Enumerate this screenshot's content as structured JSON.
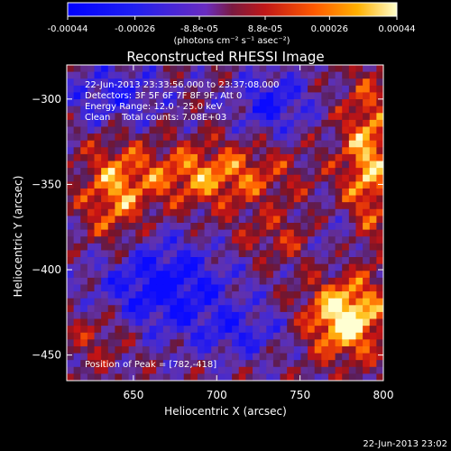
{
  "colorbar": {
    "tick_labels": [
      "-0.00044",
      "-0.00026",
      "-8.8e-05",
      "8.8e-05",
      "0.00026",
      "0.00044"
    ],
    "tick_values": [
      -0.00044,
      -0.00026,
      -8.8e-05,
      8.8e-05,
      0.00026,
      0.00044
    ],
    "range": [
      -0.00044,
      0.00044
    ],
    "units_label": "(photons cm⁻² s⁻¹ asec⁻²)"
  },
  "chart_data": {
    "type": "heatmap",
    "title": "Reconstructed RHESSI Image",
    "xlabel": "Heliocentric X (arcsec)",
    "ylabel": "Heliocentric Y (arcsec)",
    "xlim": [
      610,
      800
    ],
    "ylim": [
      -465,
      -280
    ],
    "x_ticks": [
      650,
      700,
      750,
      800
    ],
    "x_tick_labels": [
      "650",
      "700",
      "750",
      "800"
    ],
    "y_ticks": [
      -300,
      -350,
      -400,
      -450
    ],
    "y_tick_labels": [
      "−300",
      "−350",
      "−400",
      "−450"
    ],
    "annotations": [
      "22-Jun-2013 23:33:56.000 to 23:37:08.000",
      "Detectors: 3F 5F 6F 7F 8F 9F, Att 0",
      "Energy Range: 12.0 - 25.0 keV",
      "Clean    Total counts: 7.08E+03"
    ],
    "peak_label": "Position of Peak = [782,-418]",
    "peak": [
      782,
      -418
    ],
    "timestamp": "22-Jun-2013 23:02"
  },
  "colors": {
    "background": "#000000",
    "text": "#ffffff"
  }
}
